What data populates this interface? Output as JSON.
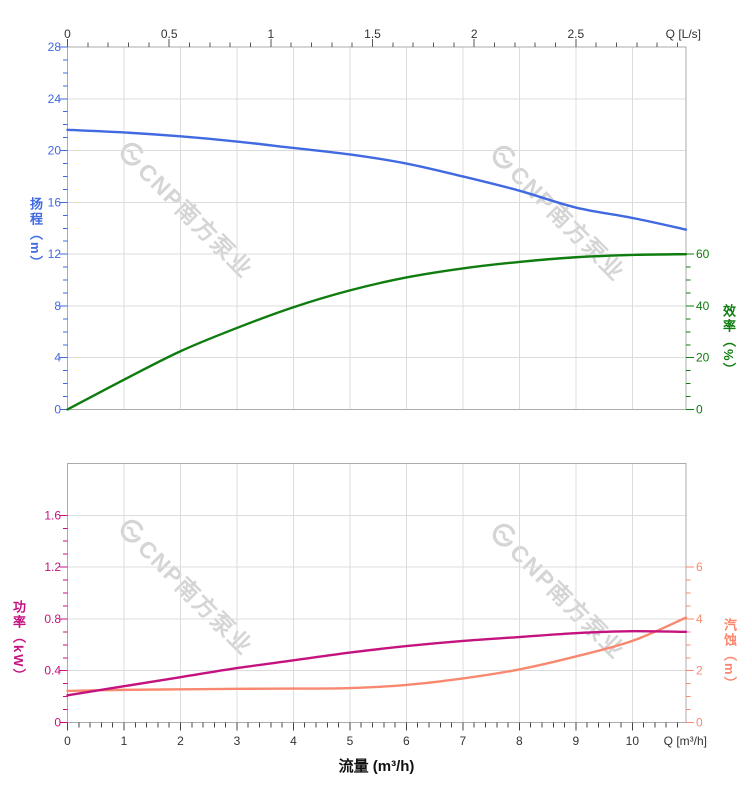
{
  "watermark": {
    "text": "CNP南方泵业",
    "logo": "cnp-logo"
  },
  "axis_titles": {
    "head": "扬程（m）",
    "efficiency": "效率（%）",
    "power": "功率（kW）",
    "npsh": "汽蚀（m）",
    "flow_bottom": "流量 (m³/h)",
    "flow_top_unit": "Q [L/s]",
    "flow_bottom_unit": "Q [m³/h]"
  },
  "colors": {
    "head": "#4169E1",
    "eff": "#0E7C0E",
    "power": "#C4137F",
    "npsh": "#F98870",
    "grid": "#DCDCDC",
    "border": "#ABABAB",
    "axis_text": "#333333",
    "tick_dark": "#555555",
    "watermark": "#CBCBCB"
  },
  "chart_data": [
    {
      "type": "line",
      "panel": "top",
      "title": "",
      "x_top_axis": {
        "label": "Q [L/s]",
        "ticks": [
          0,
          0.5,
          1,
          1.5,
          2,
          2.5
        ],
        "minor_step": 0.1,
        "range_Ls": [
          0,
          3.04
        ],
        "conversion": "1 L/s = 3.6 m3/h"
      },
      "left_axis": {
        "label": "扬程（m）",
        "ticks": [
          0,
          4,
          8,
          12,
          16,
          20,
          24,
          28
        ],
        "minor_step": 1,
        "range": [
          0,
          28
        ]
      },
      "right_axis": {
        "label": "效率（%）",
        "ticks": [
          0,
          20,
          40,
          60
        ],
        "minor_step": 5,
        "ticks_span": [
          0,
          60
        ],
        "range_full": [
          0,
          140
        ]
      },
      "grid": true,
      "series": [
        {
          "name": "扬程",
          "axis": "left",
          "color_key": "head",
          "x": [
            0,
            1,
            2,
            3,
            4,
            5,
            6,
            7,
            8,
            9,
            10,
            10.95
          ],
          "y": [
            21.6,
            21.4,
            21.1,
            20.7,
            20.2,
            19.7,
            19.0,
            18.0,
            16.9,
            15.6,
            14.8,
            13.9
          ]
        },
        {
          "name": "效率",
          "axis": "right",
          "color_key": "eff",
          "x": [
            0,
            1,
            2,
            3,
            4,
            5,
            6,
            7,
            8,
            9,
            10,
            10.95
          ],
          "y": [
            0,
            11.5,
            22.5,
            31.5,
            39.5,
            46,
            51,
            54.5,
            57,
            58.8,
            59.7,
            60
          ]
        }
      ]
    },
    {
      "type": "line",
      "panel": "bottom",
      "title": "",
      "x_axis": {
        "label": "流量 (m³/h)",
        "unit_label": "Q [m³/h]",
        "ticks": [
          0,
          1,
          2,
          3,
          4,
          5,
          6,
          7,
          8,
          9,
          10
        ],
        "minor_step": 0.2,
        "range": [
          0,
          10.95
        ]
      },
      "left_axis": {
        "label": "功率（kW）",
        "ticks": [
          0,
          0.4,
          0.8,
          1.2,
          1.6
        ],
        "minor_step": 0.1,
        "range": [
          0,
          2.0
        ]
      },
      "right_axis": {
        "label": "汽蚀（m）",
        "ticks": [
          0,
          2,
          4,
          6
        ],
        "minor_step": 0.5,
        "ticks_span": [
          0,
          6
        ],
        "range_full": [
          0,
          10
        ]
      },
      "grid": true,
      "series": [
        {
          "name": "功率",
          "axis": "left",
          "color_key": "power",
          "x": [
            0,
            1,
            2,
            3,
            4,
            5,
            6,
            7,
            8,
            9,
            10,
            10.95
          ],
          "y": [
            0.21,
            0.28,
            0.35,
            0.42,
            0.48,
            0.54,
            0.59,
            0.63,
            0.66,
            0.69,
            0.705,
            0.7
          ]
        },
        {
          "name": "汽蚀",
          "axis": "right",
          "color_key": "npsh",
          "x": [
            0,
            1,
            2,
            3,
            4,
            5,
            6,
            7,
            8,
            9,
            10,
            10.95
          ],
          "y": [
            1.22,
            1.26,
            1.28,
            1.3,
            1.31,
            1.33,
            1.45,
            1.7,
            2.05,
            2.55,
            3.15,
            4.05
          ]
        }
      ]
    }
  ]
}
